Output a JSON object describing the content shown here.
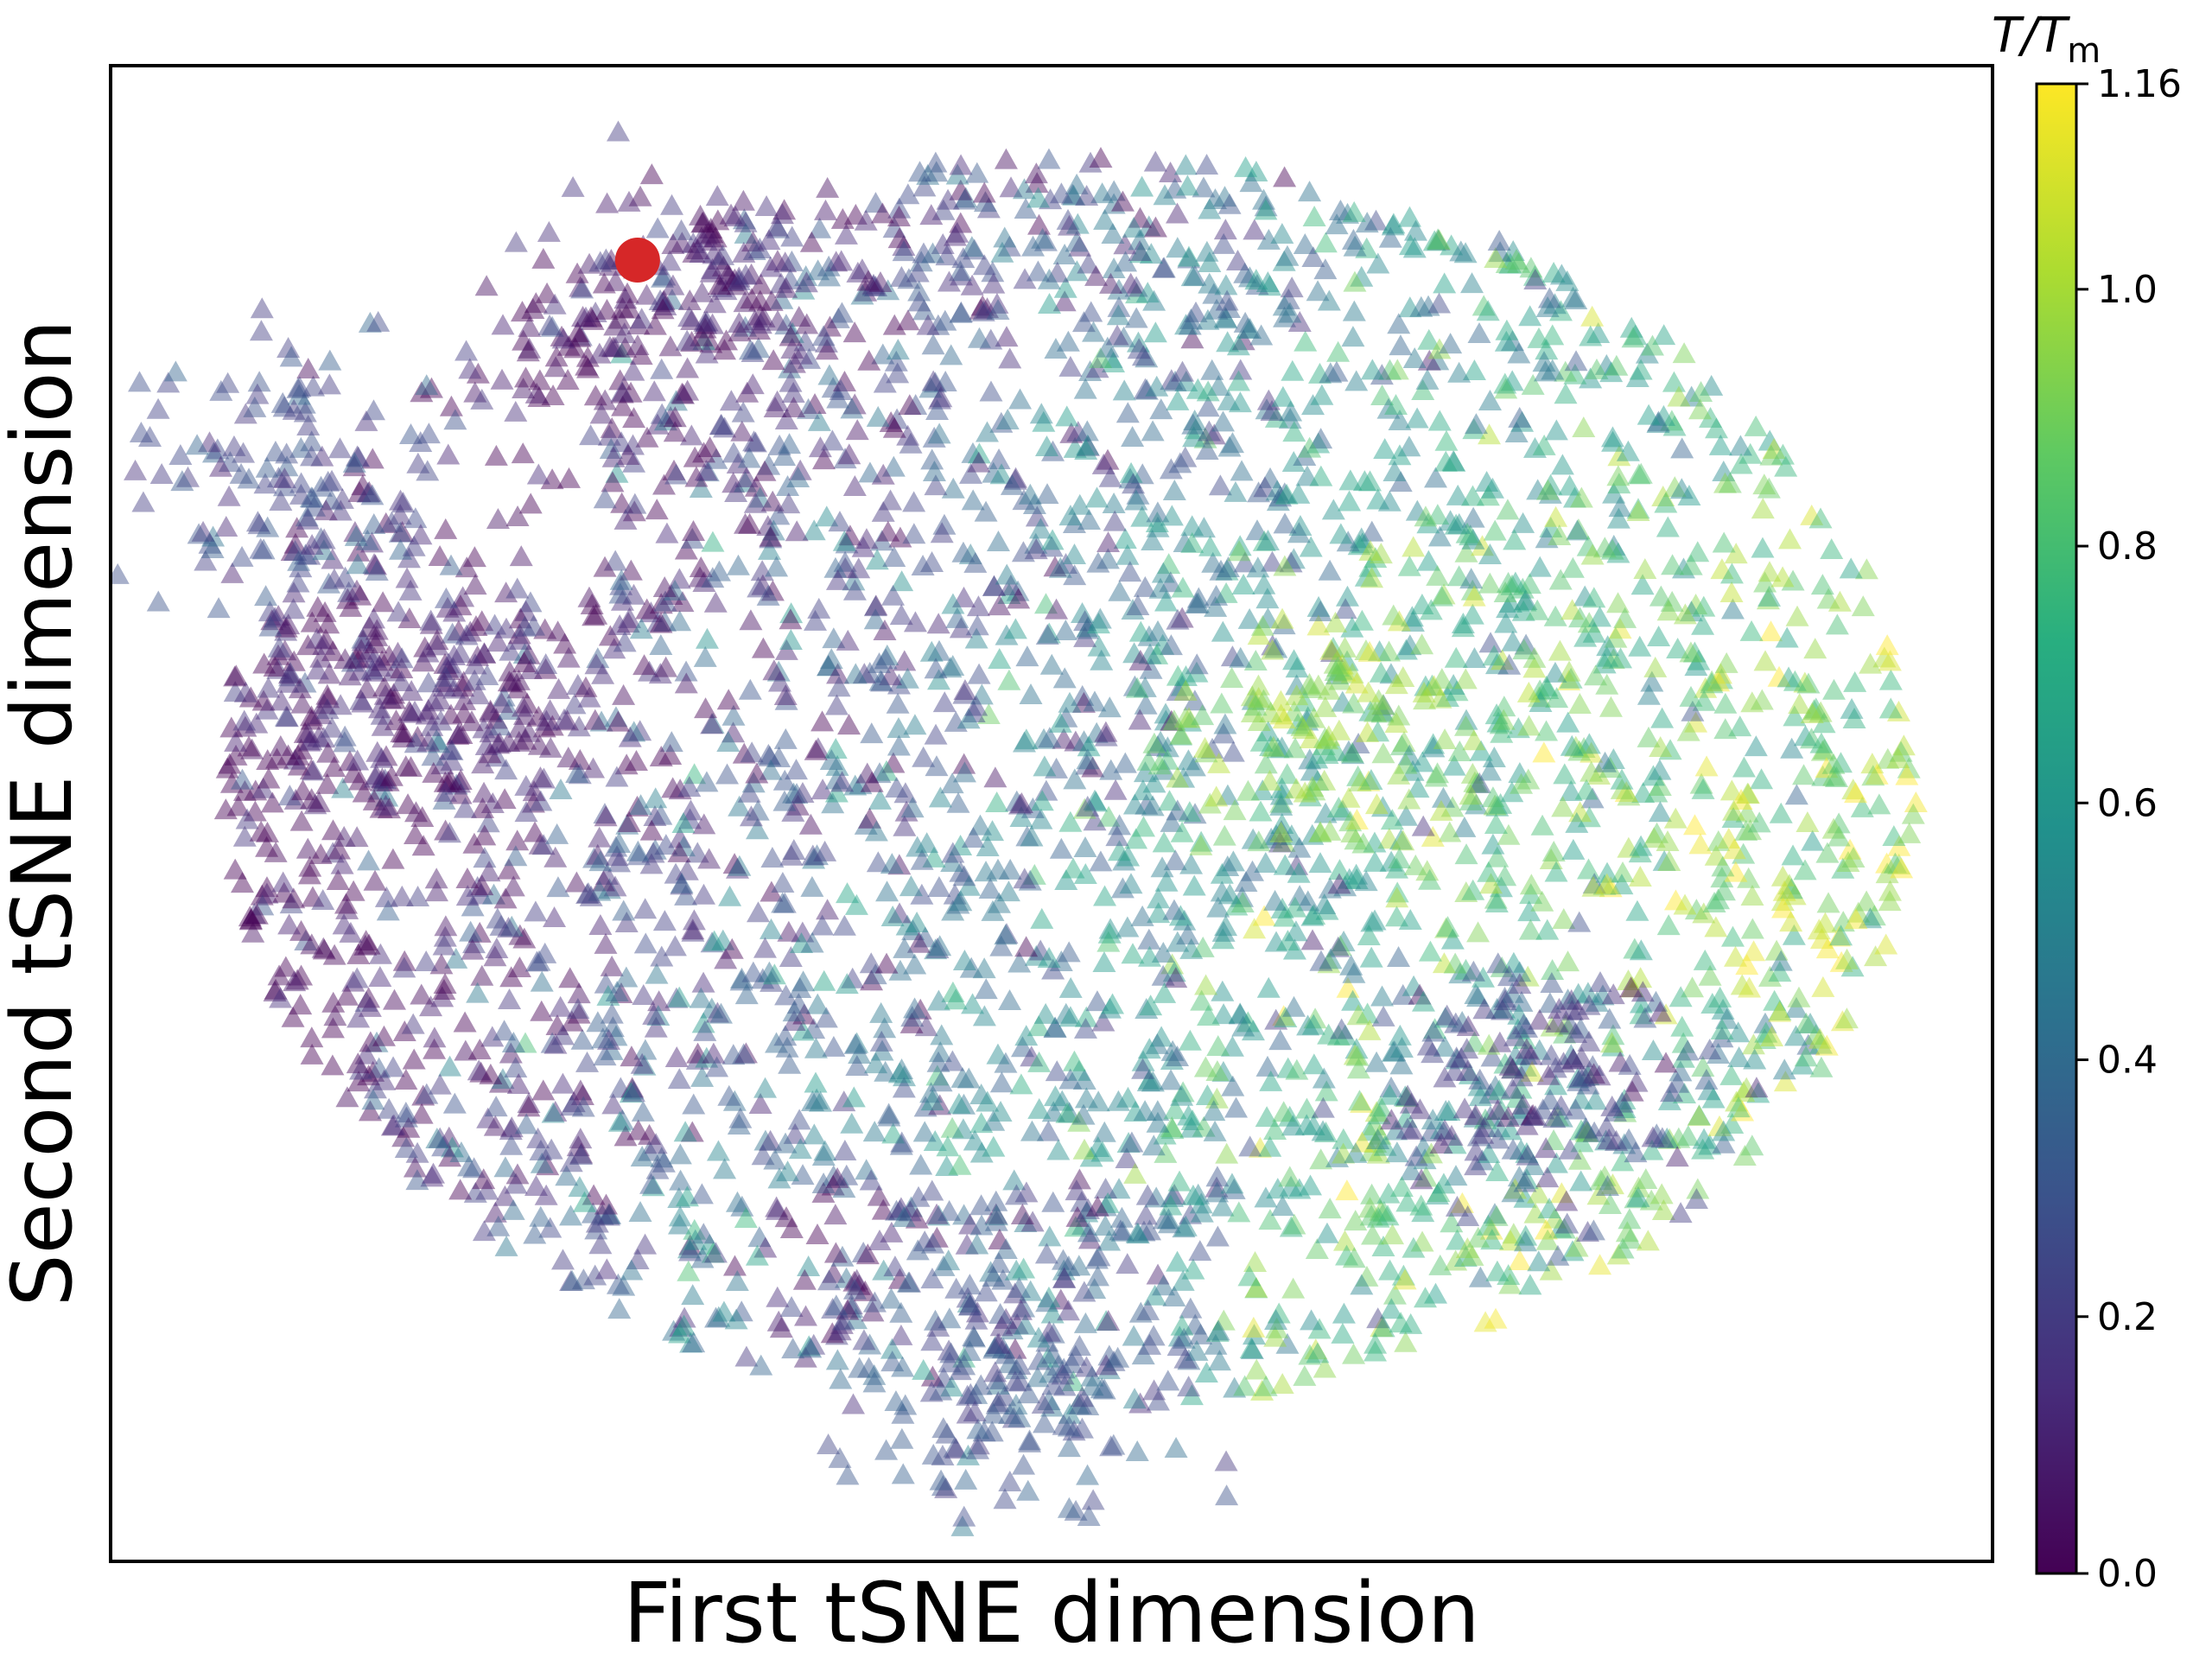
{
  "chart_data": {
    "type": "scatter",
    "title": "",
    "xlabel": "First tSNE dimension",
    "ylabel": "Second tSNE dimension",
    "x_ticks_shown": false,
    "y_ticks_shown": false,
    "grid": false,
    "marker": "triangle",
    "marker_alpha": 0.45,
    "colormap": "viridis",
    "colorbar": {
      "label_base": "T/T",
      "label_sub": "m",
      "min": 0.0,
      "max": 1.16,
      "ticks": [
        "0.0",
        "0.2",
        "0.4",
        "0.6",
        "0.8",
        "1.0",
        "1.16"
      ],
      "tick_values": [
        0.0,
        0.2,
        0.4,
        0.6,
        0.8,
        1.0,
        1.16
      ]
    },
    "xlim": [
      -50,
      50
    ],
    "ylim": [
      -50,
      50
    ],
    "highlighted_point": {
      "x": -22,
      "y": 37,
      "color": "#d62728"
    },
    "cluster_summary": [
      {
        "region": "upper-left",
        "center": [
          -18,
          35
        ],
        "color_value": 0.08
      },
      {
        "region": "left",
        "center": [
          -35,
          8
        ],
        "color_value": 0.1
      },
      {
        "region": "far-left",
        "center": [
          -40,
          22
        ],
        "color_value": 0.25
      },
      {
        "region": "center-right",
        "center": [
          15,
          5
        ],
        "color_value": 0.95
      },
      {
        "region": "bottom",
        "center": [
          -2,
          -38
        ],
        "color_value": 0.3
      },
      {
        "region": "bottom-right",
        "center": [
          26,
          -18
        ],
        "color_value": 0.2
      }
    ]
  }
}
